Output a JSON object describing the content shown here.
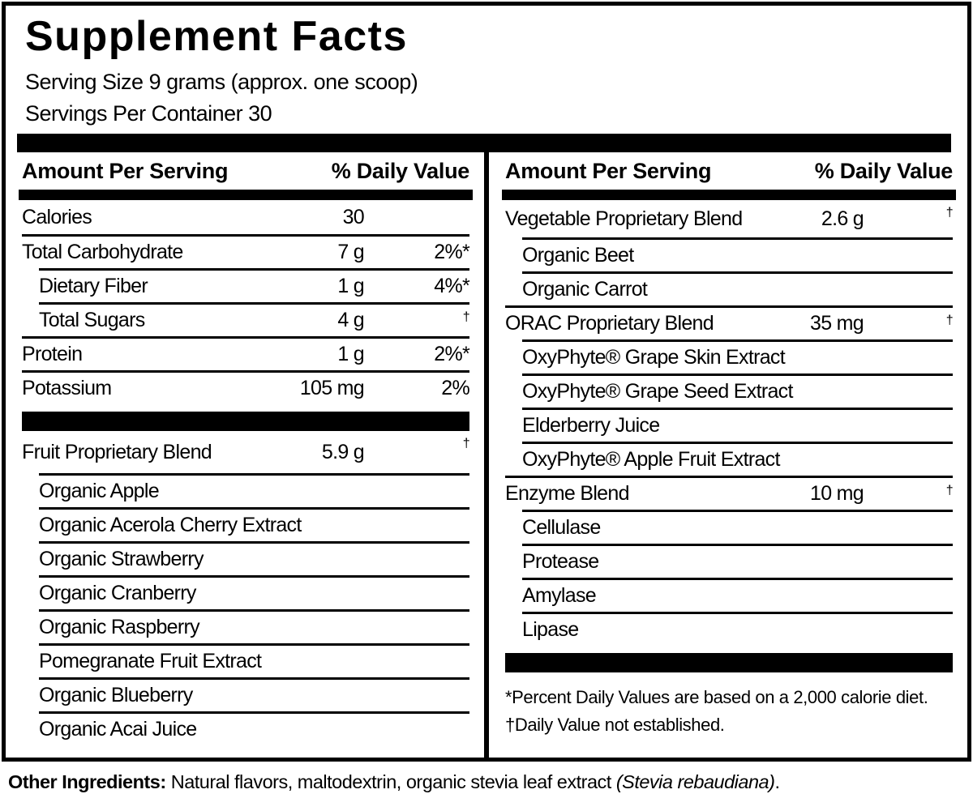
{
  "header": {
    "title": "Supplement Facts",
    "serving_size": "Serving Size 9 grams (approx. one scoop)",
    "servings_per_container": "Servings Per Container 30"
  },
  "column_header": {
    "amount_per_serving": "Amount Per Serving",
    "percent_daily_value": "% Daily Value"
  },
  "left_column": {
    "rows": [
      {
        "label": "Calories",
        "amount": "30",
        "dv": ""
      },
      {
        "label": "Total Carbohydrate",
        "amount": "7 g",
        "dv": "2%*"
      },
      {
        "label": "Dietary Fiber",
        "amount": "1 g",
        "dv": "4%*"
      },
      {
        "label": "Total Sugars",
        "amount": "4 g",
        "dv": "†"
      },
      {
        "label": "Protein",
        "amount": "1 g",
        "dv": "2%*"
      },
      {
        "label": "Potassium",
        "amount": "105 mg",
        "dv": "2%"
      }
    ],
    "blend": {
      "label": "Fruit Proprietary Blend",
      "amount": "5.9 g",
      "dv": "†"
    },
    "blend_items": [
      "Organic Apple",
      "Organic Acerola Cherry Extract",
      "Organic Strawberry",
      "Organic Cranberry",
      "Organic Raspberry",
      "Pomegranate Fruit Extract",
      "Organic Blueberry",
      "Organic Acai Juice"
    ]
  },
  "right_column": {
    "blends": [
      {
        "label": "Vegetable Proprietary Blend",
        "amount": "2.6 g",
        "dv": "†",
        "items": [
          "Organic Beet",
          "Organic Carrot"
        ]
      },
      {
        "label": "ORAC Proprietary Blend",
        "amount": "35 mg",
        "dv": "†",
        "items": [
          "OxyPhyte® Grape Skin Extract",
          "OxyPhyte® Grape Seed Extract",
          "Elderberry Juice",
          "OxyPhyte® Apple Fruit Extract"
        ]
      },
      {
        "label": "Enzyme Blend",
        "amount": "10 mg",
        "dv": "†",
        "items": [
          "Cellulase",
          "Protease",
          "Amylase",
          "Lipase"
        ]
      }
    ],
    "footnotes": [
      "*Percent Daily Values are based on a 2,000 calorie diet.",
      "†Daily Value not established."
    ]
  },
  "other_ingredients": {
    "prefix": "Other Ingredients:",
    "text": " Natural flavors, maltodextrin, organic stevia leaf extract ",
    "italic": "(Stevia rebaudiana)",
    "suffix": "."
  },
  "colors": {
    "ink": "#000000",
    "paper": "#ffffff"
  }
}
